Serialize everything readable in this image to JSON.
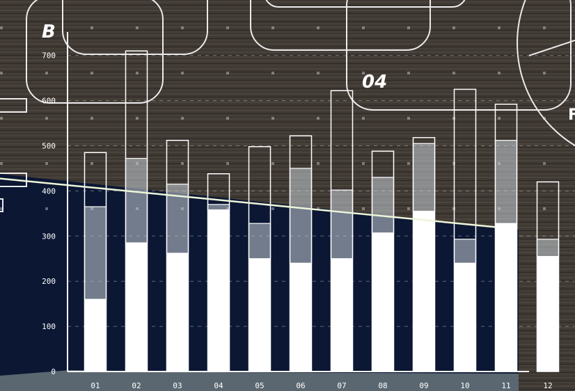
{
  "chart_data": {
    "type": "bar",
    "title": "",
    "xlabel": "",
    "ylabel": "",
    "ylim": [
      0,
      750
    ],
    "yticks": [
      0,
      100,
      200,
      300,
      400,
      500,
      600,
      700
    ],
    "categories": [
      "01",
      "02",
      "03",
      "04",
      "05",
      "06",
      "07",
      "08",
      "09",
      "10",
      "11",
      "12"
    ],
    "series": [
      {
        "values": [
          160,
          285,
          262,
          358,
          250,
          240,
          250,
          307,
          355,
          240,
          328,
          255
        ]
      },
      {
        "values": [
          365,
          472,
          415,
          370,
          328,
          450,
          402,
          430,
          505,
          293,
          512,
          293
        ]
      },
      {
        "values": [
          485,
          710,
          512,
          438,
          498,
          522,
          622,
          488,
          518,
          625,
          592,
          420
        ]
      }
    ],
    "trend_line": {
      "x": [
        "01",
        "11"
      ],
      "y": [
        412,
        320
      ]
    },
    "grid": true,
    "legend": "none"
  },
  "decor": {
    "label_b": "B",
    "label_04": "04",
    "label_f": "F"
  }
}
